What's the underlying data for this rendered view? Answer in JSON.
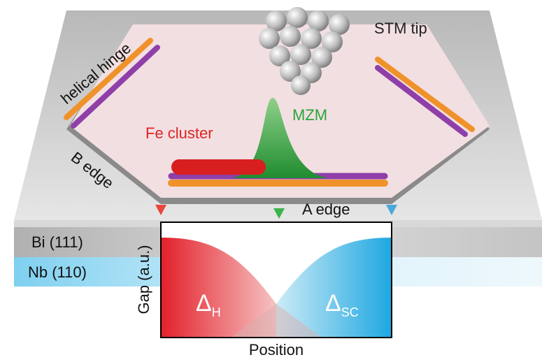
{
  "labels": {
    "stm_tip": "STM tip",
    "helical_hinge": "helical hinge",
    "mzm": "MZM",
    "fe_cluster": "Fe cluster",
    "b_edge": "B edge",
    "a_edge": "A edge",
    "bi_layer": "Bi (111)",
    "nb_layer": "Nb (110)"
  },
  "plot": {
    "y_label": "Gap (a.u.)",
    "x_label": "Position",
    "delta_h": {
      "symbol": "Δ",
      "subscript": "H"
    },
    "delta_sc": {
      "symbol": "Δ",
      "subscript": "SC"
    }
  }
}
